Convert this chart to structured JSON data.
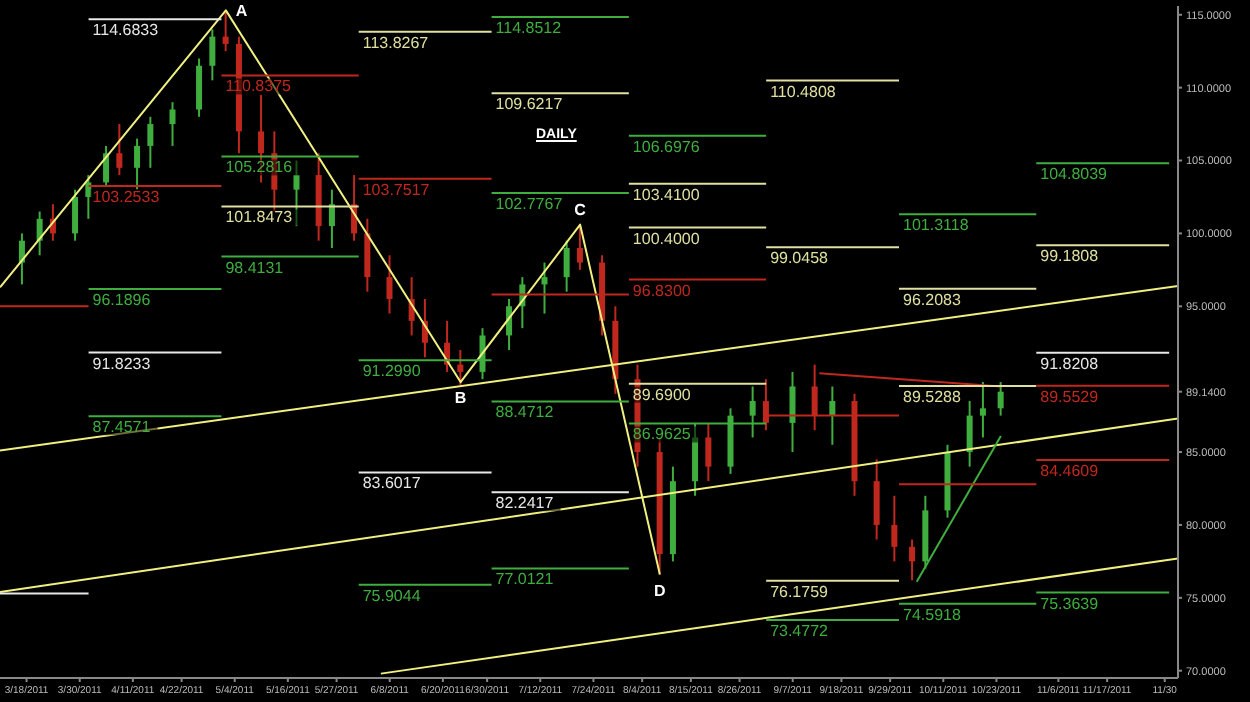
{
  "chart_data": {
    "type": "candlestick",
    "x": [
      "2011-03-17",
      "2011-03-21",
      "2011-03-24",
      "2011-03-29",
      "2011-04-01",
      "2011-04-05",
      "2011-04-08",
      "2011-04-12",
      "2011-04-15",
      "2011-04-20",
      "2011-04-26",
      "2011-04-29",
      "2011-05-02",
      "2011-05-05",
      "2011-05-10",
      "2011-05-13",
      "2011-05-18",
      "2011-05-23",
      "2011-05-26",
      "2011-05-31",
      "2011-06-03",
      "2011-06-08",
      "2011-06-13",
      "2011-06-16",
      "2011-06-21",
      "2011-06-24",
      "2011-06-29",
      "2011-07-05",
      "2011-07-08",
      "2011-07-13",
      "2011-07-18",
      "2011-07-21",
      "2011-07-26",
      "2011-07-29",
      "2011-08-03",
      "2011-08-08",
      "2011-08-11",
      "2011-08-16",
      "2011-08-19",
      "2011-08-24",
      "2011-08-29",
      "2011-09-01",
      "2011-09-07",
      "2011-09-12",
      "2011-09-16",
      "2011-09-21",
      "2011-09-26",
      "2011-09-30",
      "2011-10-04",
      "2011-10-07",
      "2011-10-12",
      "2011-10-17",
      "2011-10-20",
      "2011-10-24"
    ],
    "ohlc": [
      [
        98,
        100,
        96.5,
        99.5
      ],
      [
        99.5,
        101.5,
        98.5,
        101
      ],
      [
        101,
        102,
        99.5,
        100
      ],
      [
        100,
        103,
        99.5,
        102.5
      ],
      [
        102.5,
        104,
        101,
        103.5
      ],
      [
        103.5,
        106,
        103.2,
        105.5
      ],
      [
        105.5,
        107.5,
        104,
        104.5
      ],
      [
        104.5,
        106.5,
        103,
        106
      ],
      [
        106,
        108,
        104.5,
        107.5
      ],
      [
        107.5,
        109,
        106,
        108.5
      ],
      [
        108.5,
        112,
        108,
        111.5
      ],
      [
        111.5,
        114,
        110.5,
        113.5
      ],
      [
        113.5,
        115.3,
        112.5,
        113
      ],
      [
        113,
        113.5,
        105.5,
        107
      ],
      [
        107,
        109.5,
        103.5,
        105.5
      ],
      [
        105.5,
        107,
        101.5,
        103
      ],
      [
        103,
        105,
        100.5,
        104
      ],
      [
        104,
        105.5,
        99.5,
        100.5
      ],
      [
        100.5,
        103,
        99,
        102
      ],
      [
        102,
        104,
        99.5,
        100
      ],
      [
        100,
        101,
        96,
        97
      ],
      [
        97,
        98.5,
        94.5,
        95.5
      ],
      [
        95.5,
        97,
        93,
        94
      ],
      [
        94,
        95.5,
        91.5,
        92.5
      ],
      [
        92.5,
        94,
        90.5,
        91
      ],
      [
        91,
        92,
        89.6,
        90.5
      ],
      [
        90.5,
        93.5,
        90,
        93
      ],
      [
        93,
        95.5,
        92,
        95
      ],
      [
        95,
        97,
        93.5,
        96.5
      ],
      [
        96.5,
        98,
        94.5,
        97
      ],
      [
        97,
        99.5,
        96,
        99
      ],
      [
        99,
        100.6,
        97.5,
        98
      ],
      [
        98,
        98.5,
        93,
        94
      ],
      [
        94,
        95,
        89,
        90
      ],
      [
        90,
        91,
        84,
        85
      ],
      [
        85,
        86,
        76.6,
        78
      ],
      [
        78,
        84,
        77.5,
        83
      ],
      [
        83,
        87,
        82,
        86
      ],
      [
        86,
        87,
        83,
        84
      ],
      [
        84,
        88,
        83.5,
        87.5
      ],
      [
        87.5,
        89.5,
        86,
        88.5
      ],
      [
        88.5,
        90,
        86.5,
        87
      ],
      [
        87,
        90.5,
        85,
        89.5
      ],
      [
        89.5,
        91,
        86.5,
        87.5
      ],
      [
        87.5,
        89.5,
        85.5,
        88.5
      ],
      [
        88.5,
        89,
        82,
        83
      ],
      [
        83,
        84.5,
        79,
        80
      ],
      [
        80,
        82,
        77.5,
        78.5
      ],
      [
        78.5,
        79,
        76.2,
        77.5
      ],
      [
        77.5,
        82,
        77,
        81
      ],
      [
        81,
        85.5,
        80.5,
        85
      ],
      [
        85,
        88.5,
        84,
        87.5
      ],
      [
        87.5,
        89.8,
        86,
        88
      ],
      [
        88,
        89.8,
        87.5,
        89.14
      ]
    ],
    "colors": [
      "#3fae3f",
      "#3fae3f",
      "#c0281e",
      "#3fae3f",
      "#3fae3f",
      "#3fae3f",
      "#c0281e",
      "#3fae3f",
      "#3fae3f",
      "#3fae3f",
      "#3fae3f",
      "#3fae3f",
      "#c0281e",
      "#c0281e",
      "#c0281e",
      "#c0281e",
      "#3fae3f",
      "#c0281e",
      "#3fae3f",
      "#c0281e",
      "#c0281e",
      "#c0281e",
      "#c0281e",
      "#c0281e",
      "#c0281e",
      "#c0281e",
      "#3fae3f",
      "#3fae3f",
      "#3fae3f",
      "#3fae3f",
      "#3fae3f",
      "#c0281e",
      "#c0281e",
      "#c0281e",
      "#c0281e",
      "#c0281e",
      "#3fae3f",
      "#3fae3f",
      "#c0281e",
      "#3fae3f",
      "#3fae3f",
      "#c0281e",
      "#3fae3f",
      "#c0281e",
      "#3fae3f",
      "#c0281e",
      "#c0281e",
      "#c0281e",
      "#c0281e",
      "#3fae3f",
      "#3fae3f",
      "#3fae3f",
      "#3fae3f",
      "#3fae3f"
    ],
    "series": [
      {
        "type": "line",
        "color": "#f0f080",
        "x": [
          "2011-03-12",
          "2011-05-02",
          "2011-06-24",
          "2011-07-21",
          "2011-08-08"
        ],
        "values": [
          96.3,
          115.3,
          89.8,
          100.6,
          76.6
        ]
      },
      {
        "type": "line",
        "color": "#f0f080",
        "x": [
          "2011-03-12",
          "2011-12-03"
        ],
        "values": [
          85.1,
          96.4
        ]
      },
      {
        "type": "line",
        "color": "#f0f080",
        "x": [
          "2011-03-12",
          "2011-12-03"
        ],
        "values": [
          75.4,
          87.3
        ]
      },
      {
        "type": "line",
        "color": "#f0f080",
        "x": [
          "2011-06-06",
          "2011-12-03"
        ],
        "values": [
          69.8,
          77.7
        ]
      },
      {
        "type": "line",
        "color": "#c0281e",
        "x": [
          "2011-09-13",
          "2011-10-24"
        ],
        "values": [
          90.4,
          89.5
        ]
      },
      {
        "type": "line",
        "color": "#3fae3f",
        "x": [
          "2011-10-05",
          "2011-10-24"
        ],
        "values": [
          76.1,
          86.1
        ]
      },
      {
        "type": "line",
        "color": "#c0281e",
        "x": [
          "2011-03-12",
          "2011-04-01"
        ],
        "values": [
          95.0,
          95.0
        ]
      },
      {
        "type": "line",
        "color": "#e8e8e8",
        "x": [
          "2011-03-12",
          "2011-04-01"
        ],
        "values": [
          75.3,
          75.3
        ]
      },
      {
        "type": "line",
        "name": "114.6833",
        "color": "#e8e8e8",
        "x": [
          "2011-04-01",
          "2011-05-01"
        ],
        "values": [
          114.6833,
          114.6833
        ]
      },
      {
        "type": "line",
        "name": "103.2533",
        "color": "#c0281e",
        "x": [
          "2011-04-01",
          "2011-05-01"
        ],
        "values": [
          103.2533,
          103.2533
        ]
      },
      {
        "type": "line",
        "name": "96.1896",
        "color": "#3fae3f",
        "x": [
          "2011-04-01",
          "2011-05-01"
        ],
        "values": [
          96.1896,
          96.1896
        ]
      },
      {
        "type": "line",
        "name": "91.8233",
        "color": "#e8e8e8",
        "x": [
          "2011-04-01",
          "2011-05-01"
        ],
        "values": [
          91.8233,
          91.8233
        ]
      },
      {
        "type": "line",
        "name": "87.4571",
        "color": "#3fae3f",
        "x": [
          "2011-04-01",
          "2011-05-01"
        ],
        "values": [
          87.4571,
          87.4571
        ]
      },
      {
        "type": "line",
        "name": "110.8375",
        "color": "#c0281e",
        "x": [
          "2011-05-01",
          "2011-06-01"
        ],
        "values": [
          110.8375,
          110.8375
        ]
      },
      {
        "type": "line",
        "name": "105.2816",
        "color": "#3fae3f",
        "x": [
          "2011-05-01",
          "2011-06-01"
        ],
        "values": [
          105.2816,
          105.2816
        ]
      },
      {
        "type": "line",
        "name": "101.8473",
        "color": "#e0e0a0",
        "x": [
          "2011-05-01",
          "2011-06-01"
        ],
        "values": [
          101.8473,
          101.8473
        ]
      },
      {
        "type": "line",
        "name": "98.4131",
        "color": "#3fae3f",
        "x": [
          "2011-05-01",
          "2011-06-01"
        ],
        "values": [
          98.4131,
          98.4131
        ]
      },
      {
        "type": "line",
        "name": "113.8267",
        "color": "#e0e0a0",
        "x": [
          "2011-06-01",
          "2011-07-01"
        ],
        "values": [
          113.8267,
          113.8267
        ]
      },
      {
        "type": "line",
        "name": "103.7517",
        "color": "#c0281e",
        "x": [
          "2011-06-01",
          "2011-07-01"
        ],
        "values": [
          103.7517,
          103.7517
        ]
      },
      {
        "type": "line",
        "name": "91.2990",
        "color": "#3fae3f",
        "x": [
          "2011-06-01",
          "2011-07-01"
        ],
        "values": [
          91.299,
          91.299
        ]
      },
      {
        "type": "line",
        "name": "83.6017",
        "color": "#e8e8e8",
        "x": [
          "2011-06-01",
          "2011-07-01"
        ],
        "values": [
          83.6017,
          83.6017
        ]
      },
      {
        "type": "line",
        "name": "75.9044",
        "color": "#3fae3f",
        "x": [
          "2011-06-01",
          "2011-07-01"
        ],
        "values": [
          75.9044,
          75.9044
        ]
      },
      {
        "type": "line",
        "name": "114.8512",
        "color": "#3fae3f",
        "x": [
          "2011-07-01",
          "2011-08-01"
        ],
        "values": [
          114.8512,
          114.8512
        ]
      },
      {
        "type": "line",
        "name": "109.6217",
        "color": "#e0e0a0",
        "x": [
          "2011-07-01",
          "2011-08-01"
        ],
        "values": [
          109.6217,
          109.6217
        ]
      },
      {
        "type": "line",
        "name": "102.7767",
        "color": "#3fae3f",
        "x": [
          "2011-07-01",
          "2011-08-01"
        ],
        "values": [
          102.7767,
          102.7767
        ]
      },
      {
        "type": "line",
        "color": "#c0281e",
        "x": [
          "2011-07-01",
          "2011-08-01"
        ],
        "values": [
          95.8,
          95.8
        ]
      },
      {
        "type": "line",
        "name": "88.4712",
        "color": "#3fae3f",
        "x": [
          "2011-07-01",
          "2011-08-01"
        ],
        "values": [
          88.4712,
          88.4712
        ]
      },
      {
        "type": "line",
        "name": "82.2417",
        "color": "#e8e8e8",
        "x": [
          "2011-07-01",
          "2011-08-01"
        ],
        "values": [
          82.2417,
          82.2417
        ]
      },
      {
        "type": "line",
        "name": "77.0121",
        "color": "#3fae3f",
        "x": [
          "2011-07-01",
          "2011-08-01"
        ],
        "values": [
          77.0121,
          77.0121
        ]
      },
      {
        "type": "line",
        "name": "106.6976",
        "color": "#3fae3f",
        "x": [
          "2011-08-01",
          "2011-09-01"
        ],
        "values": [
          106.6976,
          106.6976
        ]
      },
      {
        "type": "line",
        "name": "103.4100",
        "color": "#e0e0a0",
        "x": [
          "2011-08-01",
          "2011-09-01"
        ],
        "values": [
          103.41,
          103.41
        ]
      },
      {
        "type": "line",
        "name": "100.4000",
        "color": "#e0e0a0",
        "x": [
          "2011-08-01",
          "2011-09-01"
        ],
        "values": [
          100.4,
          100.4
        ]
      },
      {
        "type": "line",
        "name": "96.8300",
        "color": "#c0281e",
        "x": [
          "2011-08-01",
          "2011-09-01"
        ],
        "values": [
          96.83,
          96.83
        ]
      },
      {
        "type": "line",
        "name": "89.6900",
        "color": "#e0e0a0",
        "x": [
          "2011-08-01",
          "2011-09-01"
        ],
        "values": [
          89.69,
          89.69
        ]
      },
      {
        "type": "line",
        "name": "86.9625",
        "color": "#3fae3f",
        "x": [
          "2011-08-01",
          "2011-09-01"
        ],
        "values": [
          86.9625,
          86.9625
        ]
      },
      {
        "type": "line",
        "name": "110.4808",
        "color": "#e0e0a0",
        "x": [
          "2011-09-01",
          "2011-10-01"
        ],
        "values": [
          110.4808,
          110.4808
        ]
      },
      {
        "type": "line",
        "name": "99.0458",
        "color": "#e0e0a0",
        "x": [
          "2011-09-01",
          "2011-10-01"
        ],
        "values": [
          99.0458,
          99.0458
        ]
      },
      {
        "type": "line",
        "color": "#c0281e",
        "x": [
          "2011-09-01",
          "2011-10-01"
        ],
        "values": [
          87.5,
          87.5
        ]
      },
      {
        "type": "line",
        "name": "76.1759",
        "color": "#e0e0a0",
        "x": [
          "2011-09-01",
          "2011-10-01"
        ],
        "values": [
          76.1759,
          76.1759
        ]
      },
      {
        "type": "line",
        "name": "73.4772",
        "color": "#3fae3f",
        "x": [
          "2011-09-01",
          "2011-10-01"
        ],
        "values": [
          73.4772,
          73.4772
        ]
      },
      {
        "type": "line",
        "name": "101.3118",
        "color": "#3fae3f",
        "x": [
          "2011-10-01",
          "2011-11-01"
        ],
        "values": [
          101.3118,
          101.3118
        ]
      },
      {
        "type": "line",
        "name": "96.2083",
        "color": "#e0e0a0",
        "x": [
          "2011-10-01",
          "2011-11-01"
        ],
        "values": [
          96.2083,
          96.2083
        ]
      },
      {
        "type": "line",
        "name": "89.5288",
        "color": "#e0e0a0",
        "x": [
          "2011-10-01",
          "2011-11-01"
        ],
        "values": [
          89.5288,
          89.5288
        ]
      },
      {
        "type": "line",
        "color": "#c0281e",
        "x": [
          "2011-10-01",
          "2011-11-01"
        ],
        "values": [
          82.8,
          82.8
        ]
      },
      {
        "type": "line",
        "name": "74.5918",
        "color": "#3fae3f",
        "x": [
          "2011-10-01",
          "2011-11-01"
        ],
        "values": [
          74.5918,
          74.5918
        ]
      },
      {
        "type": "line",
        "name": "104.8039",
        "color": "#3fae3f",
        "x": [
          "2011-11-01",
          "2011-12-01"
        ],
        "values": [
          104.8039,
          104.8039
        ]
      },
      {
        "type": "line",
        "name": "99.1808",
        "color": "#e0e0a0",
        "x": [
          "2011-11-01",
          "2011-12-01"
        ],
        "values": [
          99.1808,
          99.1808
        ]
      },
      {
        "type": "line",
        "name": "91.8208",
        "color": "#e8e8e8",
        "x": [
          "2011-11-01",
          "2011-12-01"
        ],
        "values": [
          91.8208,
          91.8208
        ]
      },
      {
        "type": "line",
        "name": "89.5529",
        "color": "#c0281e",
        "x": [
          "2011-11-01",
          "2011-12-01"
        ],
        "values": [
          89.5529,
          89.5529
        ]
      },
      {
        "type": "line",
        "name": "84.4609",
        "color": "#c0281e",
        "x": [
          "2011-11-01",
          "2011-12-01"
        ],
        "values": [
          84.4609,
          84.4609
        ]
      },
      {
        "type": "line",
        "name": "75.3639",
        "color": "#3fae3f",
        "x": [
          "2011-11-01",
          "2011-12-01"
        ],
        "values": [
          75.3639,
          75.3639
        ]
      }
    ],
    "annotations": [
      "DAILY",
      {
        "text": "A",
        "x": "2011-05-02",
        "y": 115.3
      },
      {
        "text": "B",
        "x": "2011-06-24",
        "y": 89.8
      },
      {
        "text": "C",
        "x": "2011-07-21",
        "y": 100.6
      },
      {
        "text": "D",
        "x": "2011-08-08",
        "y": 76.6
      }
    ],
    "xlim": [
      "2011-03-12",
      "2011-12-03"
    ],
    "xticks": [
      {
        "value": "2011-03-18",
        "label": "3/18/2011"
      },
      {
        "value": "2011-03-30",
        "label": "3/30/2011"
      },
      {
        "value": "2011-04-11",
        "label": "4/11/2011"
      },
      {
        "value": "2011-04-22",
        "label": "4/22/2011"
      },
      {
        "value": "2011-05-04",
        "label": "5/4/2011"
      },
      {
        "value": "2011-05-16",
        "label": "5/16/2011"
      },
      {
        "value": "2011-05-27",
        "label": "5/27/2011"
      },
      {
        "value": "2011-06-08",
        "label": "6/8/2011"
      },
      {
        "value": "2011-06-20",
        "label": "6/20/2011"
      },
      {
        "value": "2011-06-30",
        "label": "6/30/2011"
      },
      {
        "value": "2011-07-12",
        "label": "7/12/2011"
      },
      {
        "value": "2011-07-24",
        "label": "7/24/2011"
      },
      {
        "value": "2011-08-04",
        "label": "8/4/2011"
      },
      {
        "value": "2011-08-15",
        "label": "8/15/2011"
      },
      {
        "value": "2011-08-26",
        "label": "8/26/2011"
      },
      {
        "value": "2011-09-07",
        "label": "9/7/2011"
      },
      {
        "value": "2011-09-18",
        "label": "9/18/2011"
      },
      {
        "value": "2011-09-29",
        "label": "9/29/2011"
      },
      {
        "value": "2011-10-11",
        "label": "10/11/2011"
      },
      {
        "value": "2011-10-23",
        "label": "10/23/2011"
      },
      {
        "value": "2011-11-06",
        "label": "11/6/2011"
      },
      {
        "value": "2011-11-17",
        "label": "11/17/2011"
      },
      {
        "value": "2011-11-30",
        "label": "11/30"
      }
    ],
    "ylim": [
      69.5,
      115.6
    ],
    "yticks": [
      {
        "value": 70,
        "label": "70.0000"
      },
      {
        "value": 75,
        "label": "75.0000"
      },
      {
        "value": 80,
        "label": "80.0000"
      },
      {
        "value": 85,
        "label": "85.0000"
      },
      {
        "value": 89.14,
        "label": "89.1400"
      },
      {
        "value": 95,
        "label": "95.0000"
      },
      {
        "value": 100,
        "label": "100.0000"
      },
      {
        "value": 105,
        "label": "105.0000"
      },
      {
        "value": 110,
        "label": "110.0000"
      },
      {
        "value": 115,
        "label": "115.0000"
      }
    ]
  }
}
